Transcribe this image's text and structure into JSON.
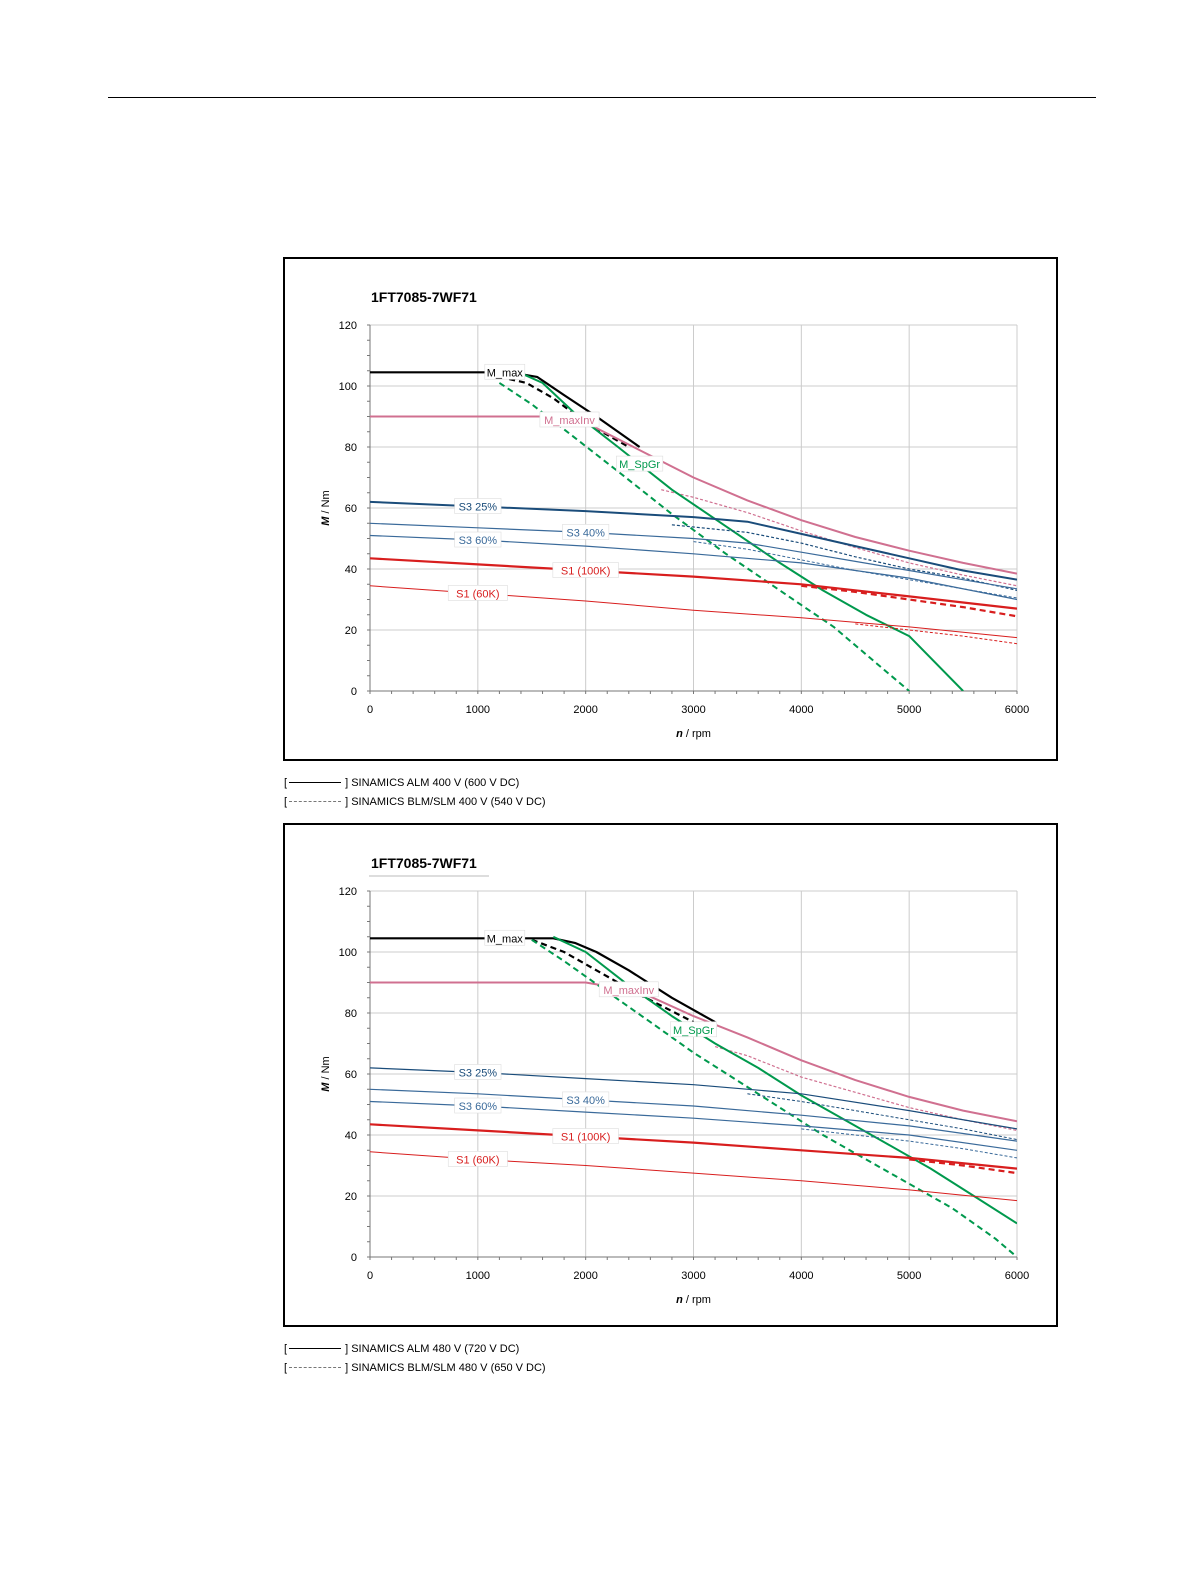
{
  "chart_data": [
    {
      "type": "line",
      "title": "1FT7085-7WF71",
      "xlabel_italic": "n",
      "xlabel_unit": " / rpm",
      "ylabel_italic": "M",
      "ylabel_unit": " / Nm",
      "xlim": [
        0,
        6000
      ],
      "ylim": [
        0,
        120
      ],
      "x_ticks": [
        "0",
        "1000",
        "2000",
        "3000",
        "4000",
        "5000",
        "6000"
      ],
      "y_ticks": [
        "0",
        "20",
        "40",
        "60",
        "80",
        "100",
        "120"
      ],
      "grid": true,
      "legend_position": "below",
      "legend": [
        {
          "style": "solid",
          "open": "[",
          "close": "]",
          "label": "SINAMICS ALM 400 V (600 V DC)"
        },
        {
          "style": "dashed",
          "open": "[",
          "close": "]",
          "label": "SINAMICS BLM/SLM 400 V (540 V DC)"
        }
      ],
      "series": [
        {
          "name": "M_max",
          "color": "#000000",
          "width": 2.2,
          "dash": false,
          "label_at": 1250,
          "x": [
            0,
            1300,
            1550,
            1800,
            2100,
            2500
          ],
          "y": [
            104.5,
            104.5,
            103,
            97,
            90,
            80
          ]
        },
        {
          "name": "",
          "color": "#000000",
          "width": 2.2,
          "dash": true,
          "x": [
            1200,
            1450,
            1700,
            2000,
            2400
          ],
          "y": [
            103,
            101,
            96,
            88,
            80
          ]
        },
        {
          "name": "M_maxInv",
          "color": "#d07090",
          "width": 2,
          "dash": false,
          "label_at": 1850,
          "x": [
            0,
            1650,
            2000,
            2500,
            3000,
            3500,
            4000,
            4500,
            5000,
            5500,
            6000
          ],
          "y": [
            90,
            90,
            88,
            79,
            70,
            62.5,
            56,
            50.5,
            46,
            42,
            38.5
          ]
        },
        {
          "name": "",
          "color": "#d07090",
          "width": 1.2,
          "dash": true,
          "x": [
            2700,
            3000,
            3500,
            4000,
            4500,
            5000,
            5500,
            6000
          ],
          "y": [
            66,
            63.5,
            58.5,
            52.5,
            47,
            42,
            38,
            34.5
          ]
        },
        {
          "name": "M_SpGr",
          "color": "#00994d",
          "width": 2,
          "dash": false,
          "label_at": 2500,
          "x": [
            1350,
            1600,
            1900,
            2300,
            2800,
            3300,
            3800,
            4200,
            4600,
            5000,
            5500
          ],
          "y": [
            105,
            101,
            91,
            80,
            66,
            54,
            42,
            33,
            25,
            18,
            0
          ]
        },
        {
          "name": "",
          "color": "#00994d",
          "width": 2,
          "dash": true,
          "x": [
            1200,
            1500,
            1900,
            2300,
            2800,
            3300,
            3800,
            4300,
            4700,
            5000
          ],
          "y": [
            101,
            94,
            83,
            72,
            58,
            45,
            33,
            21,
            9,
            0
          ]
        },
        {
          "name": "S3 25%",
          "color": "#1a4c7a",
          "width": 2,
          "dash": false,
          "label_at": 1000,
          "x": [
            0,
            1000,
            2000,
            3000,
            3500,
            4000,
            4500,
            5000,
            5500,
            6000
          ],
          "y": [
            62,
            60.5,
            59,
            57,
            55.5,
            51.5,
            47.5,
            43.5,
            39.5,
            36.5
          ]
        },
        {
          "name": "",
          "color": "#1a4c7a",
          "width": 1.2,
          "dash": true,
          "x": [
            2800,
            3500,
            4000,
            4500,
            5000,
            5500,
            6000
          ],
          "y": [
            54.5,
            52,
            48.5,
            44,
            40,
            37,
            33
          ]
        },
        {
          "name": "S3 40%",
          "color": "#3a6a9a",
          "width": 1.2,
          "dash": false,
          "label_at": 2000,
          "x": [
            0,
            1000,
            2000,
            3000,
            3500,
            4000,
            4500,
            5000,
            5500,
            6000
          ],
          "y": [
            55,
            53.5,
            52,
            50,
            48.5,
            45.5,
            42.5,
            39.5,
            36.5,
            33.5
          ]
        },
        {
          "name": "",
          "color": "#3a6a9a",
          "width": 1,
          "dash": true,
          "x": [
            3000,
            3500,
            4000,
            4500,
            5000,
            5500,
            6000
          ],
          "y": [
            49,
            46.5,
            43,
            39.5,
            36.5,
            33.5,
            30.5
          ]
        },
        {
          "name": "S3 60%",
          "color": "#3a6a9a",
          "width": 1.2,
          "dash": false,
          "label_at": 1000,
          "x": [
            0,
            1000,
            2000,
            3000,
            4000,
            5000,
            6000
          ],
          "y": [
            51,
            49.5,
            47.5,
            45,
            42,
            37,
            30
          ]
        },
        {
          "name": "S1 (100K)",
          "color": "#d81e1e",
          "width": 2.2,
          "dash": false,
          "label_at": 2000,
          "x": [
            0,
            1000,
            2000,
            3000,
            4000,
            5000,
            6000
          ],
          "y": [
            43.5,
            41.5,
            39.5,
            37.5,
            35,
            31,
            27
          ]
        },
        {
          "name": "",
          "color": "#d81e1e",
          "width": 2.2,
          "dash": true,
          "x": [
            4000,
            4500,
            5000,
            5500,
            6000
          ],
          "y": [
            34.5,
            32.5,
            30,
            27.5,
            24.5
          ]
        },
        {
          "name": "S1 (60K)",
          "color": "#d81e1e",
          "width": 1,
          "dash": false,
          "label_at": 1000,
          "x": [
            0,
            1000,
            2000,
            3000,
            4000,
            5000,
            6000
          ],
          "y": [
            34.5,
            32,
            29.5,
            26.5,
            24,
            21,
            17.5
          ]
        },
        {
          "name": "",
          "color": "#d81e1e",
          "width": 1,
          "dash": true,
          "x": [
            4500,
            5000,
            5500,
            6000
          ],
          "y": [
            22,
            20,
            18,
            15.5
          ]
        }
      ]
    },
    {
      "type": "line",
      "title": "1FT7085-7WF71",
      "xlabel_italic": "n",
      "xlabel_unit": " / rpm",
      "ylabel_italic": "M",
      "ylabel_unit": " / Nm",
      "xlim": [
        0,
        6000
      ],
      "ylim": [
        0,
        120
      ],
      "x_ticks": [
        "0",
        "1000",
        "2000",
        "3000",
        "4000",
        "5000",
        "6000"
      ],
      "y_ticks": [
        "0",
        "20",
        "40",
        "60",
        "80",
        "100",
        "120"
      ],
      "grid": true,
      "legend_position": "below",
      "legend": [
        {
          "style": "solid",
          "open": "[",
          "close": "]",
          "label": "SINAMICS ALM 480 V (720 V DC)"
        },
        {
          "style": "dashed",
          "open": "[",
          "close": "]",
          "label": "SINAMICS BLM/SLM 480 V (650 V DC)"
        }
      ],
      "series": [
        {
          "name": "M_max",
          "color": "#000000",
          "width": 2.2,
          "dash": false,
          "label_at": 1250,
          "x": [
            0,
            1700,
            1900,
            2100,
            2400,
            2800,
            3200
          ],
          "y": [
            104.5,
            104.5,
            103,
            100,
            94,
            85,
            77
          ]
        },
        {
          "name": "",
          "color": "#000000",
          "width": 2.2,
          "dash": true,
          "x": [
            1500,
            1800,
            2100,
            2500,
            3000
          ],
          "y": [
            104,
            100,
            94,
            86,
            77
          ]
        },
        {
          "name": "M_maxInv",
          "color": "#d07090",
          "width": 2,
          "dash": false,
          "label_at": 2400,
          "x": [
            0,
            2000,
            2500,
            3000,
            3500,
            4000,
            4500,
            5000,
            5500,
            6000
          ],
          "y": [
            90,
            90,
            87,
            79,
            72,
            64.5,
            58,
            52.5,
            48,
            44.5
          ]
        },
        {
          "name": "",
          "color": "#d07090",
          "width": 1.2,
          "dash": true,
          "x": [
            3200,
            3500,
            4000,
            4500,
            5000,
            5500,
            6000
          ],
          "y": [
            69,
            66,
            59,
            54,
            49,
            45,
            41.5
          ]
        },
        {
          "name": "M_SpGr",
          "color": "#00994d",
          "width": 2,
          "dash": false,
          "label_at": 3000,
          "x": [
            1700,
            2000,
            2400,
            2800,
            3200,
            3600,
            4000,
            4400,
            4800,
            5200,
            5600,
            6000
          ],
          "y": [
            105,
            100,
            89,
            79,
            70,
            62,
            53,
            45,
            37,
            29,
            20,
            11
          ]
        },
        {
          "name": "",
          "color": "#00994d",
          "width": 2,
          "dash": true,
          "x": [
            1500,
            1800,
            2200,
            2600,
            3000,
            3400,
            3800,
            4200,
            4600,
            5000,
            5400,
            5800,
            6000
          ],
          "y": [
            104,
            97,
            87,
            77,
            67,
            58,
            49,
            40,
            32,
            24,
            16,
            6,
            0
          ]
        },
        {
          "name": "S3 25%",
          "color": "#1a4c7a",
          "width": 1.2,
          "dash": false,
          "label_at": 1000,
          "x": [
            0,
            1000,
            2000,
            3000,
            4000,
            5000,
            6000
          ],
          "y": [
            62,
            60.5,
            58.5,
            56.5,
            53.5,
            48,
            42
          ]
        },
        {
          "name": "",
          "color": "#1a4c7a",
          "width": 1,
          "dash": true,
          "x": [
            3500,
            4000,
            4500,
            5000,
            5500,
            6000
          ],
          "y": [
            53.5,
            51,
            48,
            45,
            42,
            38.5
          ]
        },
        {
          "name": "S3 40%",
          "color": "#3a6a9a",
          "width": 1.2,
          "dash": false,
          "label_at": 2000,
          "x": [
            0,
            1000,
            2000,
            3000,
            4000,
            5000,
            6000
          ],
          "y": [
            55,
            53.5,
            51.5,
            49.5,
            46.5,
            43,
            38
          ]
        },
        {
          "name": "S3 60%",
          "color": "#3a6a9a",
          "width": 1.2,
          "dash": false,
          "label_at": 1000,
          "x": [
            0,
            1000,
            2000,
            3000,
            4000,
            5000,
            6000
          ],
          "y": [
            51,
            49.5,
            47.5,
            45.5,
            43,
            40,
            35
          ]
        },
        {
          "name": "",
          "color": "#3a6a9a",
          "width": 1,
          "dash": true,
          "x": [
            4000,
            4500,
            5000,
            5500,
            6000
          ],
          "y": [
            42,
            40,
            38,
            35.5,
            32.5
          ]
        },
        {
          "name": "S1 (100K)",
          "color": "#d81e1e",
          "width": 2.2,
          "dash": false,
          "label_at": 2000,
          "x": [
            0,
            1000,
            2000,
            3000,
            4000,
            5000,
            6000
          ],
          "y": [
            43.5,
            41.5,
            39.5,
            37.5,
            35,
            32.5,
            29
          ]
        },
        {
          "name": "",
          "color": "#d81e1e",
          "width": 2.2,
          "dash": true,
          "x": [
            5000,
            5500,
            6000
          ],
          "y": [
            32,
            30,
            27.5
          ]
        },
        {
          "name": "S1 (60K)",
          "color": "#d81e1e",
          "width": 1,
          "dash": false,
          "label_at": 1000,
          "x": [
            0,
            1000,
            2000,
            3000,
            4000,
            5000,
            6000
          ],
          "y": [
            34.5,
            32,
            30,
            27.5,
            25,
            22,
            18.5
          ]
        }
      ]
    }
  ]
}
